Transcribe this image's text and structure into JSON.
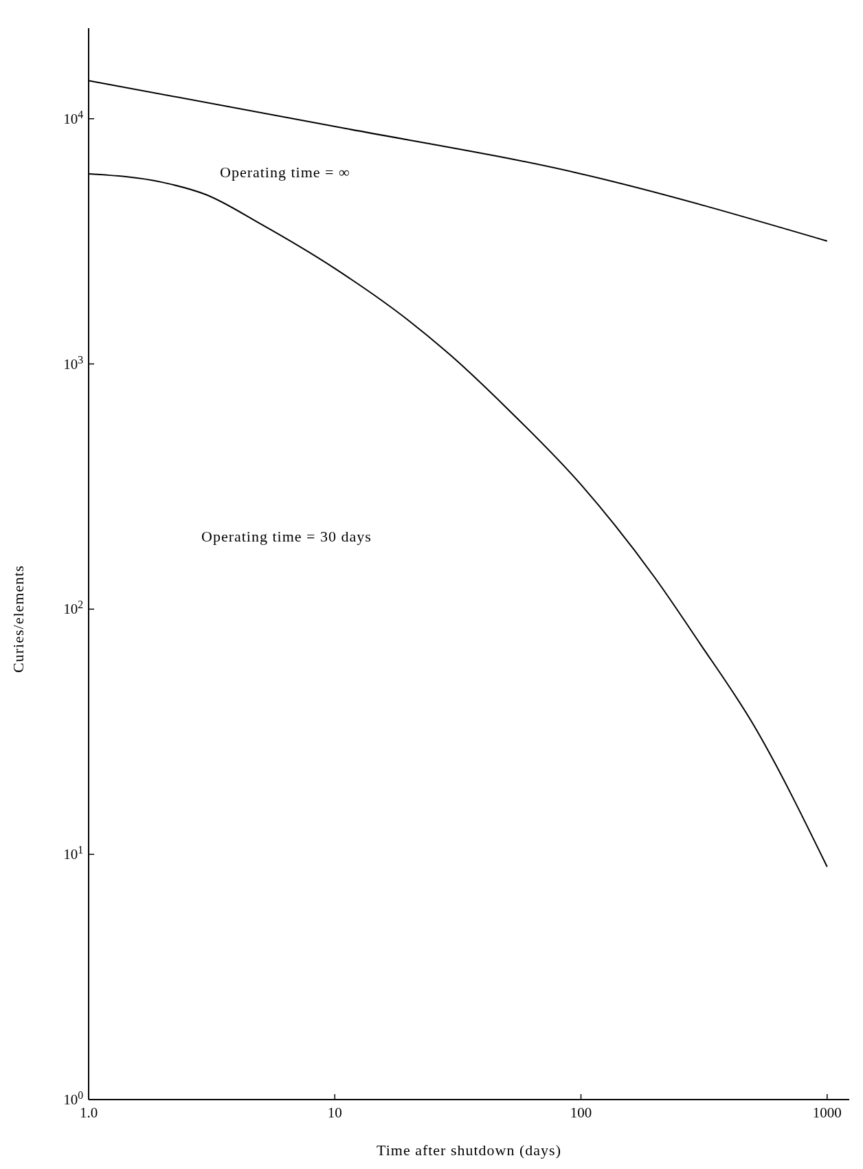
{
  "chart_data": {
    "type": "line",
    "log": "xy",
    "xlabel": "Time after shutdown (days)",
    "ylabel": "Curies/elements",
    "xlim": [
      1,
      1230
    ],
    "ylim": [
      1,
      23400
    ],
    "xticks": [
      {
        "value": 1,
        "label": "1.0"
      },
      10,
      100,
      1000
    ],
    "yticks": [
      {
        "value": 1,
        "label": "10$^{0}$"
      },
      {
        "value": 10,
        "label": "10$^{1}$"
      },
      {
        "value": 100,
        "label": "10$^{2}$"
      },
      {
        "value": 1000,
        "label": "10$^{3}$"
      },
      {
        "value": 10000,
        "label": "10$^{4}$"
      }
    ],
    "series": [
      {
        "color": "#000000",
        "x": [
          1,
          10,
          100,
          1000
        ],
        "values": [
          14300,
          9300,
          5960,
          3170
        ]
      },
      {
        "color": "#000000",
        "x": [
          1,
          2,
          3,
          5,
          10,
          20,
          30,
          50,
          100,
          200,
          300,
          500,
          1000
        ],
        "values": [
          5960,
          5500,
          4900,
          3720,
          2450,
          1500,
          1070,
          660,
          322,
          134,
          74,
          34,
          8.9
        ]
      }
    ],
    "annotations": [
      "Operating time = ∞",
      "Operating time = 30 days"
    ]
  }
}
